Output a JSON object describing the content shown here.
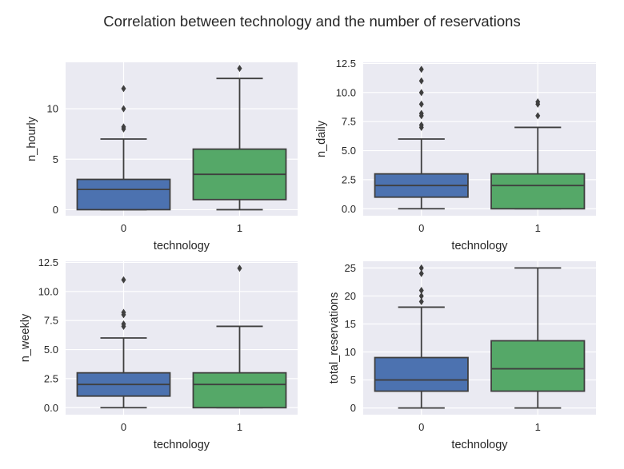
{
  "figure": {
    "suptitle": "Correlation between technology and the number of reservations"
  },
  "colors": {
    "background": "#eaeaf2",
    "grid": "#ffffff",
    "line": "#3f3f3f",
    "text": "#262626",
    "group0": "#4c72b0",
    "group1": "#55a868"
  },
  "chart_data": [
    {
      "type": "box",
      "xlabel": "technology",
      "ylabel": "n_hourly",
      "categories": [
        "0",
        "1"
      ],
      "ylim": [
        -0.6,
        14.6
      ],
      "yticks": [
        0,
        5,
        10
      ],
      "ytick_labels": [
        "0",
        "5",
        "10"
      ],
      "grid": true,
      "boxes": [
        {
          "category": "0",
          "whislo": 0,
          "q1": 0,
          "med": 2,
          "q3": 3,
          "whishi": 7,
          "fliers": [
            8,
            8.2,
            10,
            12
          ]
        },
        {
          "category": "1",
          "whislo": 0,
          "q1": 1,
          "med": 3.5,
          "q3": 6,
          "whishi": 13,
          "fliers": [
            14
          ]
        }
      ]
    },
    {
      "type": "box",
      "xlabel": "technology",
      "ylabel": "n_daily",
      "categories": [
        "0",
        "1"
      ],
      "ylim": [
        -0.6,
        12.6
      ],
      "yticks": [
        0,
        2.5,
        5,
        7.5,
        10,
        12.5
      ],
      "ytick_labels": [
        "0.0",
        "2.5",
        "5.0",
        "7.5",
        "10.0",
        "12.5"
      ],
      "grid": true,
      "boxes": [
        {
          "category": "0",
          "whislo": 0,
          "q1": 1,
          "med": 2,
          "q3": 3,
          "whishi": 6,
          "fliers": [
            7,
            7.2,
            8,
            8.2,
            9,
            10,
            11,
            12
          ]
        },
        {
          "category": "1",
          "whislo": 0,
          "q1": 0,
          "med": 2,
          "q3": 3,
          "whishi": 7,
          "fliers": [
            8,
            9,
            9.2
          ]
        }
      ]
    },
    {
      "type": "box",
      "xlabel": "technology",
      "ylabel": "n_weekly",
      "categories": [
        "0",
        "1"
      ],
      "ylim": [
        -0.6,
        12.6
      ],
      "yticks": [
        0,
        2.5,
        5,
        7.5,
        10,
        12.5
      ],
      "ytick_labels": [
        "0.0",
        "2.5",
        "5.0",
        "7.5",
        "10.0",
        "12.5"
      ],
      "grid": true,
      "boxes": [
        {
          "category": "0",
          "whislo": 0,
          "q1": 1,
          "med": 2,
          "q3": 3,
          "whishi": 6,
          "fliers": [
            7,
            7.2,
            8,
            8.2,
            11
          ]
        },
        {
          "category": "1",
          "whislo": 0,
          "q1": 0,
          "med": 2,
          "q3": 3,
          "whishi": 7,
          "fliers": [
            12
          ]
        }
      ]
    },
    {
      "type": "box",
      "xlabel": "technology",
      "ylabel": "total_reservations",
      "categories": [
        "0",
        "1"
      ],
      "ylim": [
        -1.2,
        26.2
      ],
      "yticks": [
        0,
        5,
        10,
        15,
        20,
        25
      ],
      "ytick_labels": [
        "0",
        "5",
        "10",
        "15",
        "20",
        "25"
      ],
      "grid": true,
      "boxes": [
        {
          "category": "0",
          "whislo": 0,
          "q1": 3,
          "med": 5,
          "q3": 9,
          "whishi": 18,
          "fliers": [
            19,
            20,
            21,
            24,
            25
          ]
        },
        {
          "category": "1",
          "whislo": 0,
          "q1": 3,
          "med": 7,
          "q3": 12,
          "whishi": 25,
          "fliers": []
        }
      ]
    }
  ]
}
